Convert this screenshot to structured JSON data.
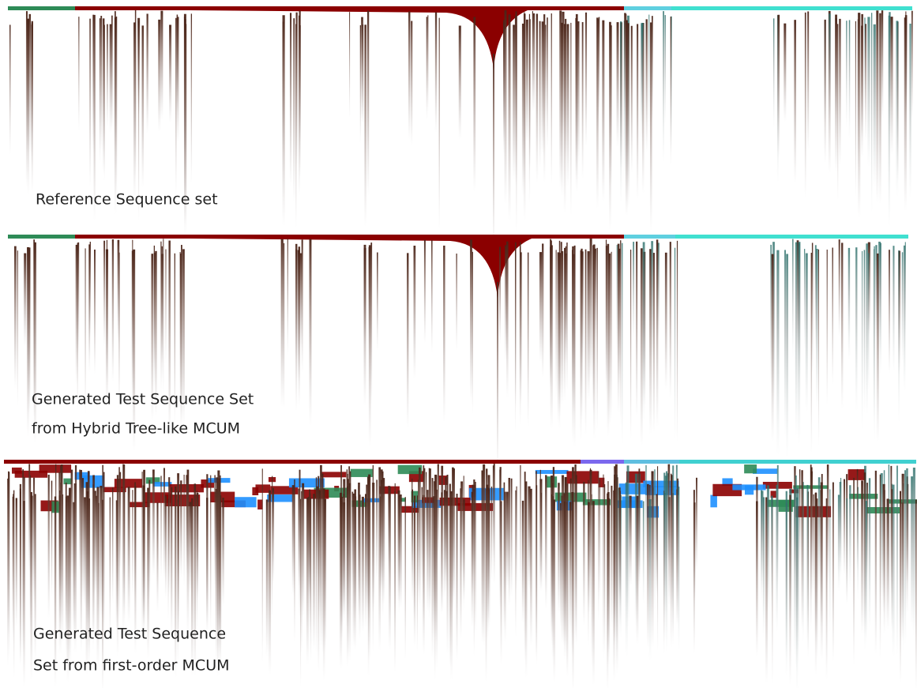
{
  "panels": [
    {
      "label": [
        "Reference Sequence set"
      ]
    },
    {
      "label": [
        "Generated Test Sequence Set",
        "from Hybrid Tree-like MCUM"
      ]
    },
    {
      "label": [
        "Generated Test Sequence",
        "Set from first-order MCUM"
      ]
    }
  ]
}
